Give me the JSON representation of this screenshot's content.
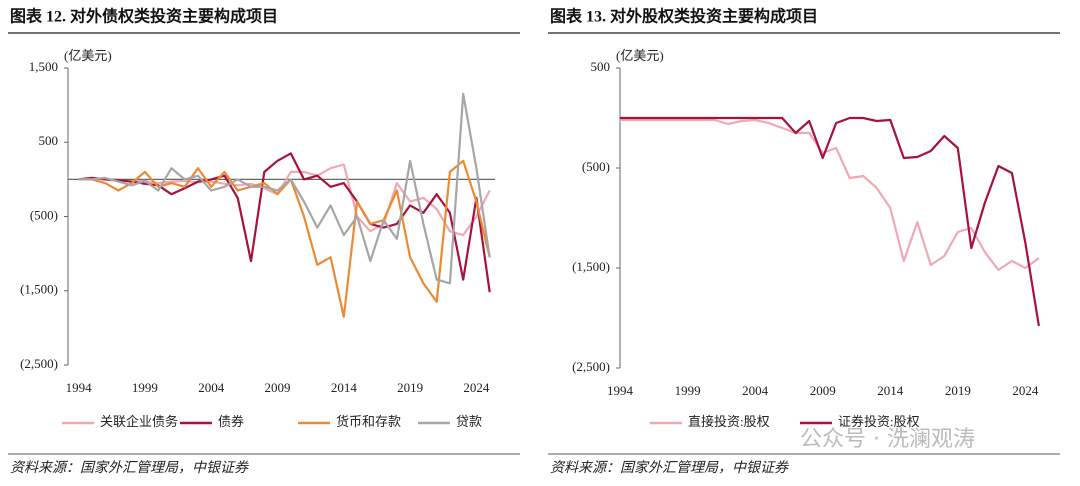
{
  "chart_data": [
    {
      "type": "line",
      "title": "图表 12. 对外债权类投资主要构成项目",
      "unit": "(亿美元)",
      "source": "资料来源：国家外汇管理局，中银证券",
      "x": [
        1994,
        1995,
        1996,
        1997,
        1998,
        1999,
        2000,
        2001,
        2002,
        2003,
        2004,
        2005,
        2006,
        2007,
        2008,
        2009,
        2010,
        2011,
        2012,
        2013,
        2014,
        2015,
        2016,
        2017,
        2018,
        2019,
        2020,
        2021,
        2022,
        2023,
        2024,
        2025
      ],
      "xlim": [
        1993.2,
        2025.4
      ],
      "xticks": [
        1994,
        1999,
        2004,
        2009,
        2014,
        2019,
        2024
      ],
      "ylim": [
        -2500,
        1500
      ],
      "yticks": [
        {
          "value": -2500,
          "label": "(2,500)"
        },
        {
          "value": -1500,
          "label": "(1,500)"
        },
        {
          "value": -500,
          "label": "(500)"
        },
        500,
        {
          "value": 1500,
          "label": "1,500"
        }
      ],
      "negative_label_color": "#c00000",
      "zero_line": true,
      "series": [
        {
          "name": "关联企业债务",
          "color": "#f0a8b4",
          "values": [
            0,
            10,
            0,
            -20,
            -30,
            -20,
            -50,
            -30,
            -20,
            -40,
            -30,
            -60,
            -80,
            -60,
            -120,
            -200,
            100,
            100,
            50,
            150,
            200,
            -500,
            -700,
            -600,
            -50,
            -300,
            -250,
            -400,
            -700,
            -750,
            -500,
            -150
          ]
        },
        {
          "name": "债券",
          "color": "#a8123a",
          "values": [
            0,
            20,
            0,
            -10,
            -30,
            -60,
            -80,
            -200,
            -120,
            -30,
            0,
            50,
            -250,
            -1100,
            100,
            250,
            350,
            0,
            50,
            -100,
            -50,
            -300,
            -600,
            -650,
            -600,
            -350,
            -450,
            -200,
            -450,
            -1350,
            -250,
            -1520
          ]
        },
        {
          "name": "货币和存款",
          "color": "#ec8a34",
          "values": [
            0,
            0,
            -50,
            -150,
            -50,
            100,
            -100,
            -50,
            -100,
            150,
            -100,
            100,
            -150,
            -100,
            -50,
            -200,
            0,
            -500,
            -1150,
            -1050,
            -1850,
            -300,
            -600,
            -550,
            -150,
            -1050,
            -1400,
            -1650,
            100,
            250,
            -300,
            -1050
          ]
        },
        {
          "name": "贷款",
          "color": "#a6a6a6",
          "values": [
            0,
            0,
            20,
            -30,
            -80,
            -20,
            -150,
            150,
            0,
            50,
            -150,
            -100,
            0,
            -100,
            -100,
            -150,
            0,
            -300,
            -650,
            -350,
            -750,
            -500,
            -1100,
            -550,
            -800,
            250,
            -600,
            -1350,
            -1400,
            1150,
            150,
            -1050
          ]
        }
      ]
    },
    {
      "type": "line",
      "title": "图表 13. 对外股权类投资主要构成项目",
      "unit": "(亿美元)",
      "source": "资料来源：国家外汇管理局，中银证券",
      "x": [
        1994,
        1995,
        1996,
        1997,
        1998,
        1999,
        2000,
        2001,
        2002,
        2003,
        2004,
        2005,
        2006,
        2007,
        2008,
        2009,
        2010,
        2011,
        2012,
        2013,
        2014,
        2015,
        2016,
        2017,
        2018,
        2019,
        2020,
        2021,
        2022,
        2023,
        2024,
        2025
      ],
      "xlim": [
        1994,
        2025.6
      ],
      "xticks": [
        1994,
        1999,
        2004,
        2009,
        2014,
        2019,
        2024
      ],
      "ylim": [
        -2500,
        500
      ],
      "yticks": [
        {
          "value": -2500,
          "label": "(2,500)"
        },
        {
          "value": -1500,
          "label": "(1,500)"
        },
        {
          "value": -500,
          "label": "(500)"
        },
        500
      ],
      "negative_label_color": "#c00000",
      "zero_line": false,
      "series": [
        {
          "name": "直接投资:股权",
          "color": "#f0a8b4",
          "values": [
            -20,
            -20,
            -20,
            -20,
            -20,
            -20,
            -20,
            -20,
            -60,
            -30,
            -20,
            -50,
            -100,
            -150,
            -150,
            -350,
            -300,
            -600,
            -580,
            -700,
            -900,
            -1430,
            -1040,
            -1470,
            -1380,
            -1140,
            -1100,
            -1340,
            -1520,
            -1430,
            -1500,
            -1400
          ]
        },
        {
          "name": "证券投资:股权",
          "color": "#a8123a",
          "values": [
            0,
            0,
            0,
            0,
            0,
            0,
            0,
            0,
            0,
            0,
            0,
            0,
            0,
            -150,
            -30,
            -400,
            -50,
            0,
            0,
            -30,
            -20,
            -400,
            -390,
            -330,
            -180,
            -300,
            -1300,
            -850,
            -480,
            -550,
            -1250,
            -2080
          ]
        }
      ]
    }
  ],
  "watermark": "公众号 · 洗澜观涛"
}
